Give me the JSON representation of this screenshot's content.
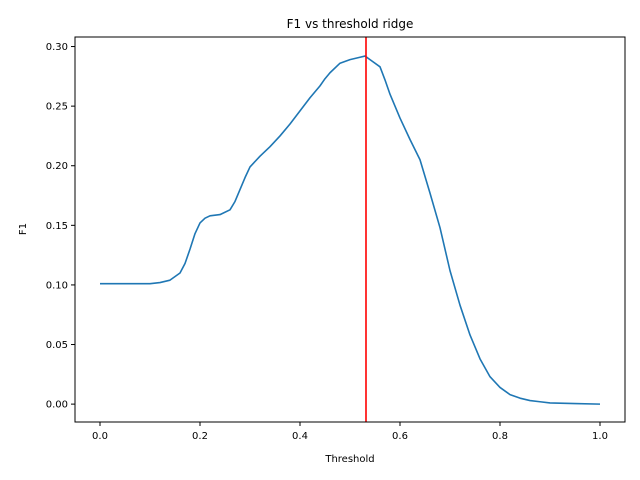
{
  "chart_data": {
    "type": "line",
    "title": "F1 vs threshold ridge",
    "xlabel": "Threshold",
    "ylabel": "F1",
    "xlim": [
      -0.05,
      1.05
    ],
    "ylim": [
      -0.015,
      0.308
    ],
    "xticks": [
      0.0,
      0.2,
      0.4,
      0.6,
      0.8,
      1.0
    ],
    "xtick_labels": [
      "0.0",
      "0.2",
      "0.4",
      "0.6",
      "0.8",
      "1.0"
    ],
    "yticks": [
      0.0,
      0.05,
      0.1,
      0.15,
      0.2,
      0.25,
      0.3
    ],
    "ytick_labels": [
      "0.00",
      "0.05",
      "0.10",
      "0.15",
      "0.20",
      "0.25",
      "0.30"
    ],
    "grid": false,
    "series": [
      {
        "color": "#1f77b4",
        "x": [
          0.0,
          0.05,
          0.1,
          0.12,
          0.14,
          0.16,
          0.17,
          0.18,
          0.19,
          0.2,
          0.21,
          0.22,
          0.24,
          0.26,
          0.27,
          0.28,
          0.29,
          0.3,
          0.32,
          0.34,
          0.36,
          0.38,
          0.4,
          0.42,
          0.44,
          0.45,
          0.46,
          0.48,
          0.5,
          0.52,
          0.53,
          0.54,
          0.56,
          0.57,
          0.58,
          0.6,
          0.62,
          0.64,
          0.66,
          0.68,
          0.7,
          0.72,
          0.74,
          0.76,
          0.78,
          0.8,
          0.82,
          0.84,
          0.86,
          0.88,
          0.9,
          0.95,
          1.0
        ],
        "y": [
          0.101,
          0.101,
          0.101,
          0.102,
          0.104,
          0.11,
          0.118,
          0.13,
          0.143,
          0.152,
          0.156,
          0.158,
          0.159,
          0.163,
          0.17,
          0.18,
          0.19,
          0.199,
          0.208,
          0.216,
          0.225,
          0.235,
          0.246,
          0.257,
          0.267,
          0.273,
          0.278,
          0.286,
          0.289,
          0.291,
          0.292,
          0.289,
          0.283,
          0.272,
          0.26,
          0.24,
          0.222,
          0.205,
          0.177,
          0.148,
          0.112,
          0.083,
          0.058,
          0.038,
          0.023,
          0.014,
          0.008,
          0.005,
          0.003,
          0.002,
          0.001,
          0.0005,
          0.0
        ]
      }
    ],
    "vlines": [
      {
        "x": 0.532,
        "color": "#ff0000"
      }
    ]
  }
}
